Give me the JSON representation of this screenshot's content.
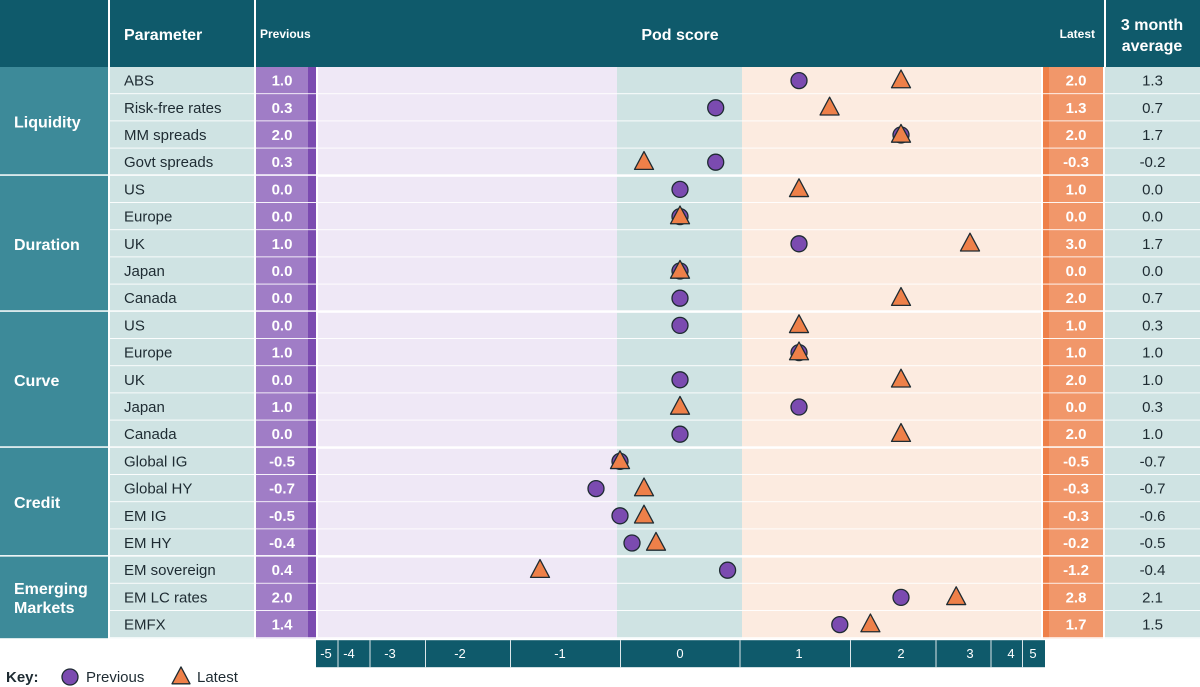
{
  "header": {
    "parameter": "Parameter",
    "previous": "Previous",
    "pod_score": "Pod score",
    "latest": "Latest",
    "avg_line1": "3 month",
    "avg_line2": "average"
  },
  "key": {
    "label": "Key:",
    "previous": "Previous",
    "latest": "Latest"
  },
  "colors": {
    "header_bg": "#0f5a6b",
    "group_bg": "#3d8a99",
    "row_bg": "#cfe3e3",
    "previous_panel": "#efe8f6",
    "center_band": "#cfe3e3",
    "latest_panel": "#fcebe0",
    "previous_color": "#7b4bb0",
    "latest_color": "#ee8049",
    "outline": "#1e2b32"
  },
  "chart_data": {
    "type": "scatter",
    "title": "Pod score",
    "x_ticks": [
      "-5",
      "-4",
      "-3",
      "-2",
      "-1",
      "0",
      "1",
      "2",
      "3",
      "4",
      "5"
    ],
    "xlim": [
      -5,
      5
    ],
    "series_names": [
      "Previous",
      "Latest"
    ],
    "groups": [
      {
        "name": "Liquidity",
        "rows": [
          {
            "label": "ABS",
            "previous": "1.0",
            "latest": "2.0",
            "avg": "1.3"
          },
          {
            "label": "Risk-free rates",
            "previous": "0.3",
            "latest": "1.3",
            "avg": "0.7"
          },
          {
            "label": "MM spreads",
            "previous": "2.0",
            "latest": "2.0",
            "avg": "1.7"
          },
          {
            "label": "Govt spreads",
            "previous": "0.3",
            "latest": "-0.3",
            "avg": "-0.2"
          }
        ]
      },
      {
        "name": "Duration",
        "rows": [
          {
            "label": "US",
            "previous": "0.0",
            "latest": "1.0",
            "avg": "0.0"
          },
          {
            "label": "Europe",
            "previous": "0.0",
            "latest": "0.0",
            "avg": "0.0"
          },
          {
            "label": "UK",
            "previous": "1.0",
            "latest": "3.0",
            "avg": "1.7"
          },
          {
            "label": "Japan",
            "previous": "0.0",
            "latest": "0.0",
            "avg": "0.0"
          },
          {
            "label": "Canada",
            "previous": "0.0",
            "latest": "2.0",
            "avg": "0.7"
          }
        ]
      },
      {
        "name": "Curve",
        "rows": [
          {
            "label": "US",
            "previous": "0.0",
            "latest": "1.0",
            "avg": "0.3"
          },
          {
            "label": "Europe",
            "previous": "1.0",
            "latest": "1.0",
            "avg": "1.0"
          },
          {
            "label": "UK",
            "previous": "0.0",
            "latest": "2.0",
            "avg": "1.0"
          },
          {
            "label": "Japan",
            "previous": "1.0",
            "latest": "0.0",
            "avg": "0.3"
          },
          {
            "label": "Canada",
            "previous": "0.0",
            "latest": "2.0",
            "avg": "1.0"
          }
        ]
      },
      {
        "name": "Credit",
        "rows": [
          {
            "label": "Global IG",
            "previous": "-0.5",
            "latest": "-0.5",
            "avg": "-0.7"
          },
          {
            "label": "Global HY",
            "previous": "-0.7",
            "latest": "-0.3",
            "avg": "-0.7"
          },
          {
            "label": "EM IG",
            "previous": "-0.5",
            "latest": "-0.3",
            "avg": "-0.6"
          },
          {
            "label": "EM HY",
            "previous": "-0.4",
            "latest": "-0.2",
            "avg": "-0.5"
          }
        ]
      },
      {
        "name": "Emerging Markets",
        "name_lines": [
          "Emerging",
          "Markets"
        ],
        "rows": [
          {
            "label": "EM sovereign",
            "previous": "0.4",
            "latest": "-1.2",
            "avg": "-0.4"
          },
          {
            "label": "EM LC rates",
            "previous": "2.0",
            "latest": "2.8",
            "avg": "2.1"
          },
          {
            "label": "EMFX",
            "previous": "1.4",
            "latest": "1.7",
            "avg": "1.5"
          }
        ]
      }
    ]
  }
}
